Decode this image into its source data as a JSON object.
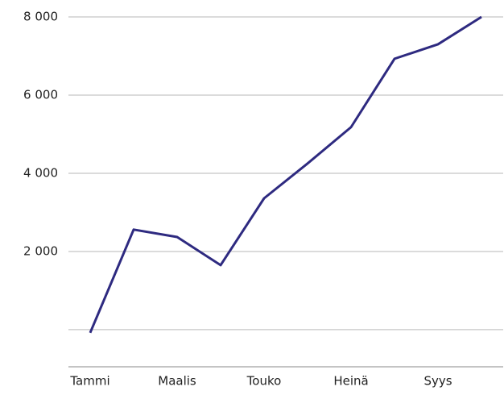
{
  "chart_data": {
    "type": "line",
    "categories": [
      "Tammi",
      null,
      "Maalis",
      null,
      "Touko",
      null,
      "Heinä",
      null,
      "Syys",
      null
    ],
    "series": [
      {
        "color": "#2e2a80",
        "values": [
          -80,
          2560,
          2370,
          1650,
          3360,
          4250,
          5180,
          6930,
          7300,
          8000
        ]
      }
    ],
    "ylim": [
      -950,
      8000
    ],
    "yticks": [
      {
        "value": 0,
        "label": null
      },
      {
        "value": 2000,
        "label": "2 000"
      },
      {
        "value": 4000,
        "label": "4 000"
      },
      {
        "value": 6000,
        "label": "6 000"
      },
      {
        "value": 8000,
        "label": "8 000"
      }
    ],
    "grid": true
  }
}
